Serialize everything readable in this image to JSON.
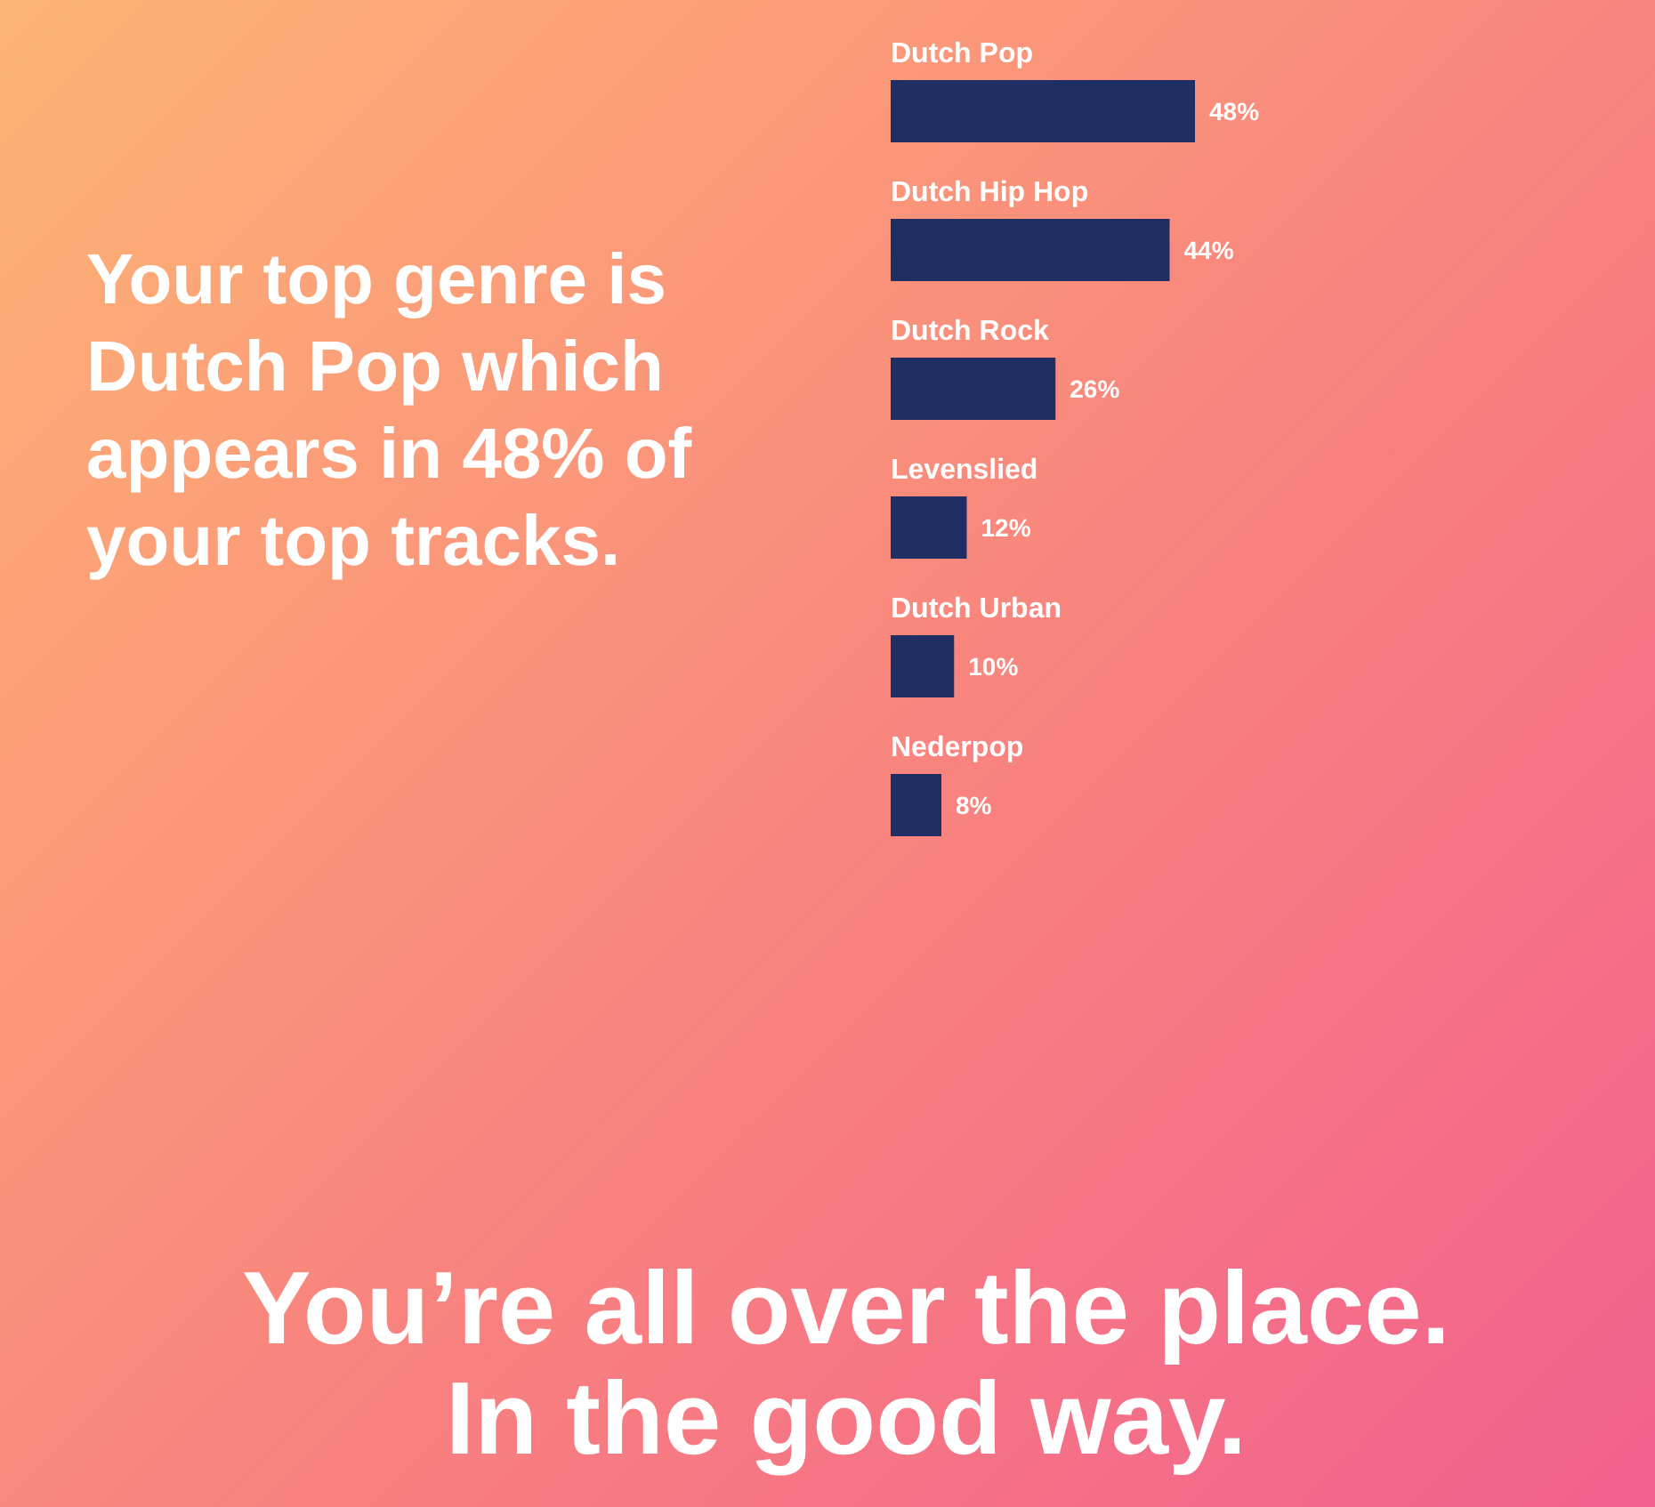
{
  "chart_data": {
    "type": "bar",
    "orientation": "horizontal",
    "title": "Your top genre is Dutch Pop which appears in 48% of your top tracks.",
    "annotations": [
      "You’re all over the place. In the good way."
    ],
    "categories": [
      "Dutch Pop",
      "Dutch Hip Hop",
      "Dutch Rock",
      "Levenslied",
      "Dutch Urban",
      "Nederpop"
    ],
    "series": [
      {
        "color": "#1f2f63",
        "values": [
          48,
          44,
          26,
          12,
          10,
          8
        ],
        "value_labels": [
          "48%",
          "44%",
          "26%",
          "12%",
          "10%",
          "8%"
        ]
      }
    ],
    "tick_labels": false,
    "grid": false
  }
}
